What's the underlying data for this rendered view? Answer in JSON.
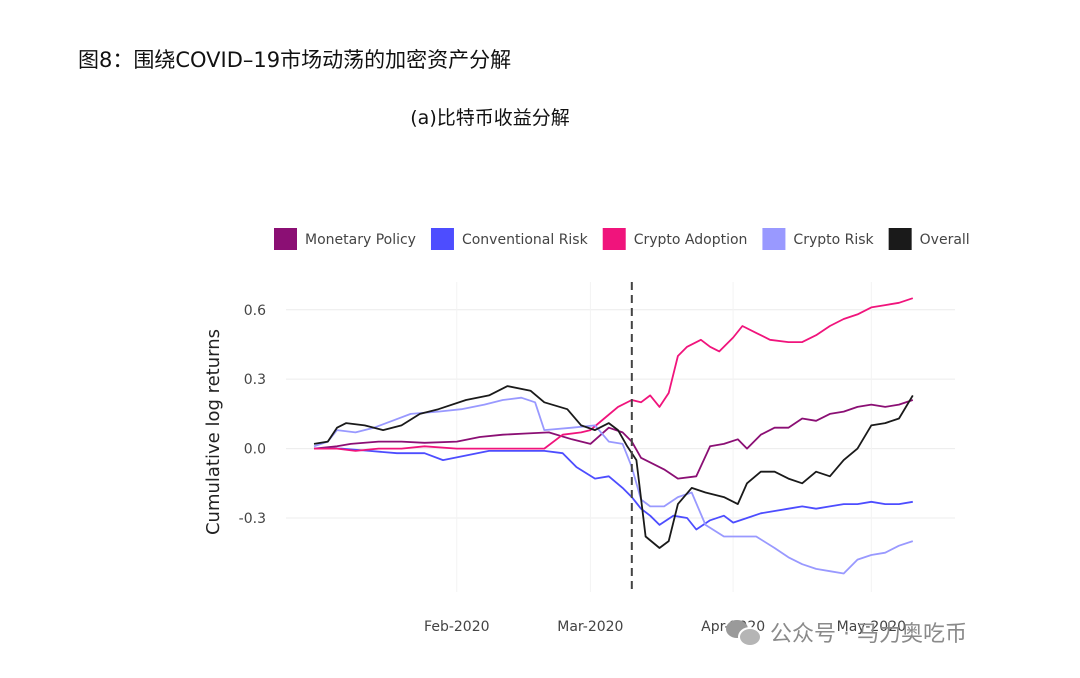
{
  "figure": {
    "title": "图8：围绕COVID–19市场动荡的加密资产分解",
    "subtitle": "(a)比特币收益分解"
  },
  "watermark": {
    "text": "公众号 · 马力奥吃币",
    "icon": "wechat-icon"
  },
  "chart_data": {
    "type": "line",
    "title": "",
    "xlabel": "",
    "ylabel": "Cumulative log returns",
    "x_axis": {
      "type": "date",
      "range": [
        "2020-01-01",
        "2020-05-12"
      ],
      "ticks": [
        {
          "date": "2020-02-01",
          "label": "Feb-2020"
        },
        {
          "date": "2020-03-01",
          "label": "Mar-2020"
        },
        {
          "date": "2020-04-01",
          "label": "Apr-2020"
        },
        {
          "date": "2020-05-01",
          "label": "May-2020"
        }
      ]
    },
    "y_axis": {
      "range": [
        -0.62,
        0.72
      ],
      "ticks": [
        -0.3,
        0.0,
        0.3,
        0.6
      ]
    },
    "grid": "horizontal",
    "legend_position": "top",
    "reference_line": {
      "date": "2020-03-10",
      "style": "dashed"
    },
    "series": [
      {
        "name": "Monetary Policy",
        "color": "#8b0f74",
        "points": [
          [
            "2020-01-01",
            0.0
          ],
          [
            "2020-01-06",
            0.01
          ],
          [
            "2020-01-09",
            0.02
          ],
          [
            "2020-01-15",
            0.03
          ],
          [
            "2020-01-20",
            0.03
          ],
          [
            "2020-01-25",
            0.025
          ],
          [
            "2020-02-01",
            0.03
          ],
          [
            "2020-02-06",
            0.05
          ],
          [
            "2020-02-11",
            0.06
          ],
          [
            "2020-02-16",
            0.065
          ],
          [
            "2020-02-21",
            0.07
          ],
          [
            "2020-02-26",
            0.04
          ],
          [
            "2020-03-01",
            0.02
          ],
          [
            "2020-03-05",
            0.09
          ],
          [
            "2020-03-08",
            0.07
          ],
          [
            "2020-03-10",
            0.03
          ],
          [
            "2020-03-12",
            -0.04
          ],
          [
            "2020-03-14",
            -0.06
          ],
          [
            "2020-03-17",
            -0.09
          ],
          [
            "2020-03-20",
            -0.13
          ],
          [
            "2020-03-24",
            -0.12
          ],
          [
            "2020-03-27",
            0.01
          ],
          [
            "2020-03-30",
            0.02
          ],
          [
            "2020-04-02",
            0.04
          ],
          [
            "2020-04-04",
            0.0
          ],
          [
            "2020-04-07",
            0.06
          ],
          [
            "2020-04-10",
            0.09
          ],
          [
            "2020-04-13",
            0.09
          ],
          [
            "2020-04-16",
            0.13
          ],
          [
            "2020-04-19",
            0.12
          ],
          [
            "2020-04-22",
            0.15
          ],
          [
            "2020-04-25",
            0.16
          ],
          [
            "2020-04-28",
            0.18
          ],
          [
            "2020-05-01",
            0.19
          ],
          [
            "2020-05-04",
            0.18
          ],
          [
            "2020-05-07",
            0.19
          ],
          [
            "2020-05-10",
            0.21
          ]
        ]
      },
      {
        "name": "Conventional Risk",
        "color": "#4d4dff",
        "points": [
          [
            "2020-01-01",
            0.0
          ],
          [
            "2020-01-07",
            0.0
          ],
          [
            "2020-01-13",
            -0.01
          ],
          [
            "2020-01-19",
            -0.02
          ],
          [
            "2020-01-25",
            -0.02
          ],
          [
            "2020-01-29",
            -0.05
          ],
          [
            "2020-02-03",
            -0.03
          ],
          [
            "2020-02-08",
            -0.01
          ],
          [
            "2020-02-14",
            -0.01
          ],
          [
            "2020-02-20",
            -0.01
          ],
          [
            "2020-02-24",
            -0.02
          ],
          [
            "2020-02-27",
            -0.08
          ],
          [
            "2020-03-02",
            -0.13
          ],
          [
            "2020-03-05",
            -0.12
          ],
          [
            "2020-03-08",
            -0.17
          ],
          [
            "2020-03-10",
            -0.21
          ],
          [
            "2020-03-12",
            -0.26
          ],
          [
            "2020-03-14",
            -0.29
          ],
          [
            "2020-03-16",
            -0.33
          ],
          [
            "2020-03-19",
            -0.29
          ],
          [
            "2020-03-22",
            -0.3
          ],
          [
            "2020-03-24",
            -0.35
          ],
          [
            "2020-03-27",
            -0.31
          ],
          [
            "2020-03-30",
            -0.29
          ],
          [
            "2020-04-01",
            -0.32
          ],
          [
            "2020-04-04",
            -0.3
          ],
          [
            "2020-04-07",
            -0.28
          ],
          [
            "2020-04-10",
            -0.27
          ],
          [
            "2020-04-13",
            -0.26
          ],
          [
            "2020-04-16",
            -0.25
          ],
          [
            "2020-04-19",
            -0.26
          ],
          [
            "2020-04-22",
            -0.25
          ],
          [
            "2020-04-25",
            -0.24
          ],
          [
            "2020-04-28",
            -0.24
          ],
          [
            "2020-05-01",
            -0.23
          ],
          [
            "2020-05-04",
            -0.24
          ],
          [
            "2020-05-07",
            -0.24
          ],
          [
            "2020-05-10",
            -0.23
          ]
        ]
      },
      {
        "name": "Crypto Adoption",
        "color": "#f0147c",
        "points": [
          [
            "2020-01-01",
            0.0
          ],
          [
            "2020-01-06",
            0.0
          ],
          [
            "2020-01-10",
            -0.01
          ],
          [
            "2020-01-15",
            0.0
          ],
          [
            "2020-01-20",
            0.0
          ],
          [
            "2020-01-25",
            0.01
          ],
          [
            "2020-02-01",
            0.0
          ],
          [
            "2020-02-08",
            0.0
          ],
          [
            "2020-02-15",
            0.0
          ],
          [
            "2020-02-20",
            0.0
          ],
          [
            "2020-02-24",
            0.06
          ],
          [
            "2020-02-28",
            0.07
          ],
          [
            "2020-03-01",
            0.08
          ],
          [
            "2020-03-04",
            0.13
          ],
          [
            "2020-03-07",
            0.18
          ],
          [
            "2020-03-10",
            0.21
          ],
          [
            "2020-03-12",
            0.2
          ],
          [
            "2020-03-14",
            0.23
          ],
          [
            "2020-03-16",
            0.18
          ],
          [
            "2020-03-18",
            0.24
          ],
          [
            "2020-03-20",
            0.4
          ],
          [
            "2020-03-22",
            0.44
          ],
          [
            "2020-03-25",
            0.47
          ],
          [
            "2020-03-27",
            0.44
          ],
          [
            "2020-03-29",
            0.42
          ],
          [
            "2020-04-01",
            0.48
          ],
          [
            "2020-04-03",
            0.53
          ],
          [
            "2020-04-06",
            0.5
          ],
          [
            "2020-04-09",
            0.47
          ],
          [
            "2020-04-13",
            0.46
          ],
          [
            "2020-04-16",
            0.46
          ],
          [
            "2020-04-19",
            0.49
          ],
          [
            "2020-04-22",
            0.53
          ],
          [
            "2020-04-25",
            0.56
          ],
          [
            "2020-04-28",
            0.58
          ],
          [
            "2020-05-01",
            0.61
          ],
          [
            "2020-05-04",
            0.62
          ],
          [
            "2020-05-07",
            0.63
          ],
          [
            "2020-05-10",
            0.65
          ]
        ]
      },
      {
        "name": "Crypto Risk",
        "color": "#9999ff",
        "points": [
          [
            "2020-01-01",
            0.01
          ],
          [
            "2020-01-04",
            0.03
          ],
          [
            "2020-01-06",
            0.08
          ],
          [
            "2020-01-10",
            0.07
          ],
          [
            "2020-01-14",
            0.09
          ],
          [
            "2020-01-18",
            0.12
          ],
          [
            "2020-01-22",
            0.15
          ],
          [
            "2020-01-28",
            0.16
          ],
          [
            "2020-02-02",
            0.17
          ],
          [
            "2020-02-07",
            0.19
          ],
          [
            "2020-02-11",
            0.21
          ],
          [
            "2020-02-15",
            0.22
          ],
          [
            "2020-02-18",
            0.2
          ],
          [
            "2020-02-20",
            0.08
          ],
          [
            "2020-02-26",
            0.09
          ],
          [
            "2020-03-02",
            0.1
          ],
          [
            "2020-03-05",
            0.03
          ],
          [
            "2020-03-08",
            0.02
          ],
          [
            "2020-03-10",
            -0.08
          ],
          [
            "2020-03-12",
            -0.22
          ],
          [
            "2020-03-14",
            -0.25
          ],
          [
            "2020-03-17",
            -0.25
          ],
          [
            "2020-03-20",
            -0.21
          ],
          [
            "2020-03-23",
            -0.19
          ],
          [
            "2020-03-26",
            -0.33
          ],
          [
            "2020-03-30",
            -0.38
          ],
          [
            "2020-04-02",
            -0.38
          ],
          [
            "2020-04-06",
            -0.38
          ],
          [
            "2020-04-10",
            -0.43
          ],
          [
            "2020-04-13",
            -0.47
          ],
          [
            "2020-04-16",
            -0.5
          ],
          [
            "2020-04-19",
            -0.52
          ],
          [
            "2020-04-22",
            -0.53
          ],
          [
            "2020-04-25",
            -0.54
          ],
          [
            "2020-04-28",
            -0.48
          ],
          [
            "2020-05-01",
            -0.46
          ],
          [
            "2020-05-04",
            -0.45
          ],
          [
            "2020-05-07",
            -0.42
          ],
          [
            "2020-05-10",
            -0.4
          ]
        ]
      },
      {
        "name": "Overall",
        "color": "#1a1a1a",
        "points": [
          [
            "2020-01-01",
            0.02
          ],
          [
            "2020-01-04",
            0.03
          ],
          [
            "2020-01-06",
            0.09
          ],
          [
            "2020-01-08",
            0.11
          ],
          [
            "2020-01-12",
            0.1
          ],
          [
            "2020-01-16",
            0.08
          ],
          [
            "2020-01-20",
            0.1
          ],
          [
            "2020-01-24",
            0.15
          ],
          [
            "2020-01-28",
            0.17
          ],
          [
            "2020-02-03",
            0.21
          ],
          [
            "2020-02-08",
            0.23
          ],
          [
            "2020-02-12",
            0.27
          ],
          [
            "2020-02-17",
            0.25
          ],
          [
            "2020-02-20",
            0.2
          ],
          [
            "2020-02-25",
            0.17
          ],
          [
            "2020-02-28",
            0.1
          ],
          [
            "2020-03-02",
            0.08
          ],
          [
            "2020-03-05",
            0.11
          ],
          [
            "2020-03-07",
            0.08
          ],
          [
            "2020-03-09",
            0.01
          ],
          [
            "2020-03-11",
            -0.05
          ],
          [
            "2020-03-13",
            -0.38
          ],
          [
            "2020-03-16",
            -0.43
          ],
          [
            "2020-03-18",
            -0.4
          ],
          [
            "2020-03-20",
            -0.24
          ],
          [
            "2020-03-23",
            -0.17
          ],
          [
            "2020-03-26",
            -0.19
          ],
          [
            "2020-03-30",
            -0.21
          ],
          [
            "2020-04-02",
            -0.24
          ],
          [
            "2020-04-04",
            -0.15
          ],
          [
            "2020-04-07",
            -0.1
          ],
          [
            "2020-04-10",
            -0.1
          ],
          [
            "2020-04-13",
            -0.13
          ],
          [
            "2020-04-16",
            -0.15
          ],
          [
            "2020-04-19",
            -0.1
          ],
          [
            "2020-04-22",
            -0.12
          ],
          [
            "2020-04-25",
            -0.05
          ],
          [
            "2020-04-28",
            0.0
          ],
          [
            "2020-05-01",
            0.1
          ],
          [
            "2020-05-04",
            0.11
          ],
          [
            "2020-05-07",
            0.13
          ],
          [
            "2020-05-10",
            0.23
          ]
        ]
      }
    ]
  }
}
